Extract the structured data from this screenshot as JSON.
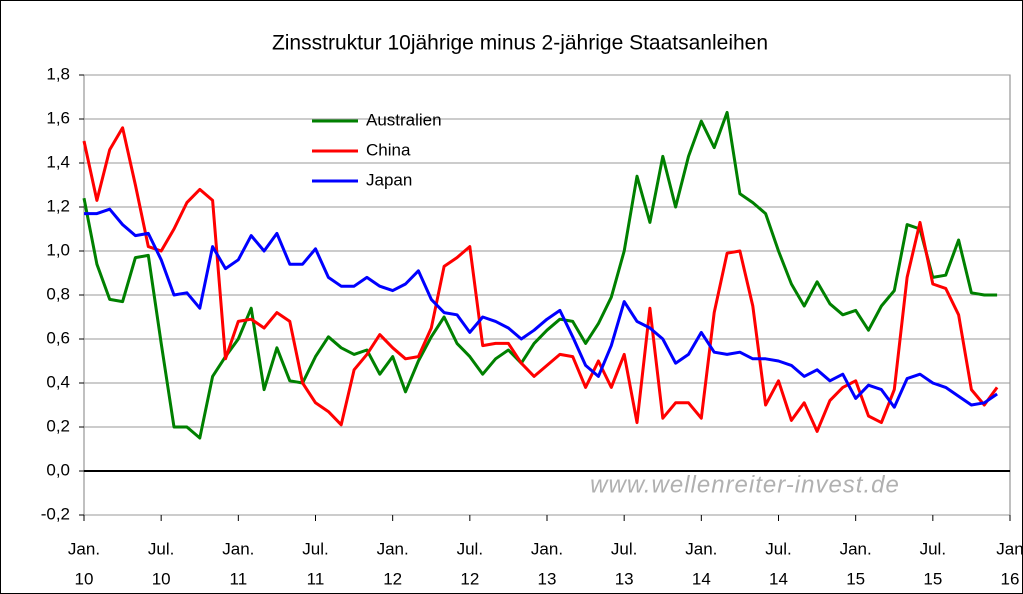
{
  "chart_data": {
    "type": "line",
    "title": "Zinsstruktur 10jährige minus 2-jährige Staatsanleihen",
    "watermark": "www.wellenreiter-invest.de",
    "x": [
      0,
      1,
      2,
      3,
      4,
      5,
      6,
      7,
      8,
      9,
      10,
      11,
      12,
      13,
      14,
      15,
      16,
      17,
      18,
      19,
      20,
      21,
      22,
      23,
      24,
      25,
      26,
      27,
      28,
      29,
      30,
      31,
      32,
      33,
      34,
      35,
      36,
      37,
      38,
      39,
      40,
      41,
      42,
      43,
      44,
      45,
      46,
      47,
      48,
      49,
      50,
      51,
      52,
      53,
      54,
      55,
      56,
      57,
      58,
      59,
      60,
      61,
      62,
      63,
      64,
      65,
      66,
      67,
      68,
      69,
      70,
      71
    ],
    "xlim": [
      0,
      72
    ],
    "xticks": [
      {
        "value": 0,
        "label": "Jan.",
        "year": "10"
      },
      {
        "value": 6,
        "label": "Jul.",
        "year": "10"
      },
      {
        "value": 12,
        "label": "Jan.",
        "year": "11"
      },
      {
        "value": 18,
        "label": "Jul.",
        "year": "11"
      },
      {
        "value": 24,
        "label": "Jan.",
        "year": "12"
      },
      {
        "value": 30,
        "label": "Jul.",
        "year": "12"
      },
      {
        "value": 36,
        "label": "Jan.",
        "year": "13"
      },
      {
        "value": 42,
        "label": "Jul.",
        "year": "13"
      },
      {
        "value": 48,
        "label": "Jan.",
        "year": "14"
      },
      {
        "value": 54,
        "label": "Jul.",
        "year": "14"
      },
      {
        "value": 60,
        "label": "Jan.",
        "year": "15"
      },
      {
        "value": 66,
        "label": "Jul.",
        "year": "15"
      },
      {
        "value": 72,
        "label": "Jan",
        "year": "16"
      }
    ],
    "ylim": [
      -0.2,
      1.8
    ],
    "yticks": [
      {
        "value": -0.2,
        "label": "-0,2"
      },
      {
        "value": 0,
        "label": "0,0"
      },
      {
        "value": 0.2,
        "label": "0,2"
      },
      {
        "value": 0.4,
        "label": "0,4"
      },
      {
        "value": 0.6,
        "label": "0,6"
      },
      {
        "value": 0.8,
        "label": "0,8"
      },
      {
        "value": 1.0,
        "label": "1,0"
      },
      {
        "value": 1.2,
        "label": "1,2"
      },
      {
        "value": 1.4,
        "label": "1,4"
      },
      {
        "value": 1.6,
        "label": "1,6"
      },
      {
        "value": 1.8,
        "label": "1,8"
      }
    ],
    "grid": true,
    "series": [
      {
        "name": "Australien",
        "color": "#008000",
        "values": [
          1.24,
          0.94,
          0.78,
          0.77,
          0.97,
          0.98,
          0.58,
          0.2,
          0.2,
          0.15,
          0.43,
          0.52,
          0.6,
          0.74,
          0.37,
          0.56,
          0.41,
          0.4,
          0.52,
          0.61,
          0.56,
          0.53,
          0.55,
          0.44,
          0.52,
          0.36,
          0.5,
          0.61,
          0.7,
          0.58,
          0.52,
          0.44,
          0.51,
          0.55,
          0.49,
          0.58,
          0.64,
          0.69,
          0.68,
          0.58,
          0.67,
          0.79,
          1.0,
          1.34,
          1.13,
          1.43,
          1.2,
          1.43,
          1.59,
          1.47,
          1.63,
          1.26,
          1.22,
          1.17,
          1.0,
          0.85,
          0.75,
          0.86,
          0.76,
          0.71,
          0.73,
          0.64,
          0.75,
          0.82,
          1.12,
          1.1,
          0.88,
          0.89,
          1.05,
          0.81,
          0.8,
          0.8
        ]
      },
      {
        "name": "China",
        "color": "#ff0000",
        "values": [
          1.5,
          1.23,
          1.46,
          1.56,
          1.3,
          1.02,
          1.0,
          1.1,
          1.22,
          1.28,
          1.23,
          0.51,
          0.68,
          0.69,
          0.65,
          0.72,
          0.68,
          0.4,
          0.31,
          0.27,
          0.21,
          0.46,
          0.53,
          0.62,
          0.56,
          0.51,
          0.52,
          0.65,
          0.93,
          0.97,
          1.02,
          0.57,
          0.58,
          0.58,
          0.49,
          0.43,
          0.48,
          0.53,
          0.52,
          0.38,
          0.5,
          0.38,
          0.53,
          0.22,
          0.74,
          0.24,
          0.31,
          0.31,
          0.24,
          0.72,
          0.99,
          1.0,
          0.75,
          0.3,
          0.41,
          0.23,
          0.31,
          0.18,
          0.32,
          0.38,
          0.41,
          0.25,
          0.22,
          0.37,
          0.88,
          1.13,
          0.85,
          0.83,
          0.71,
          0.37,
          0.3,
          0.38
        ]
      },
      {
        "name": "Japan",
        "color": "#0000ff",
        "values": [
          1.17,
          1.17,
          1.19,
          1.12,
          1.07,
          1.08,
          0.96,
          0.8,
          0.81,
          0.74,
          1.02,
          0.92,
          0.96,
          1.07,
          1.0,
          1.08,
          0.94,
          0.94,
          1.01,
          0.88,
          0.84,
          0.84,
          0.88,
          0.84,
          0.82,
          0.85,
          0.91,
          0.78,
          0.72,
          0.71,
          0.63,
          0.7,
          0.68,
          0.65,
          0.6,
          0.64,
          0.69,
          0.73,
          0.61,
          0.48,
          0.43,
          0.57,
          0.77,
          0.68,
          0.65,
          0.6,
          0.49,
          0.53,
          0.63,
          0.54,
          0.53,
          0.54,
          0.51,
          0.51,
          0.5,
          0.48,
          0.43,
          0.46,
          0.41,
          0.44,
          0.33,
          0.39,
          0.37,
          0.29,
          0.42,
          0.44,
          0.4,
          0.38,
          0.34,
          0.3,
          0.31,
          0.35
        ]
      }
    ]
  }
}
